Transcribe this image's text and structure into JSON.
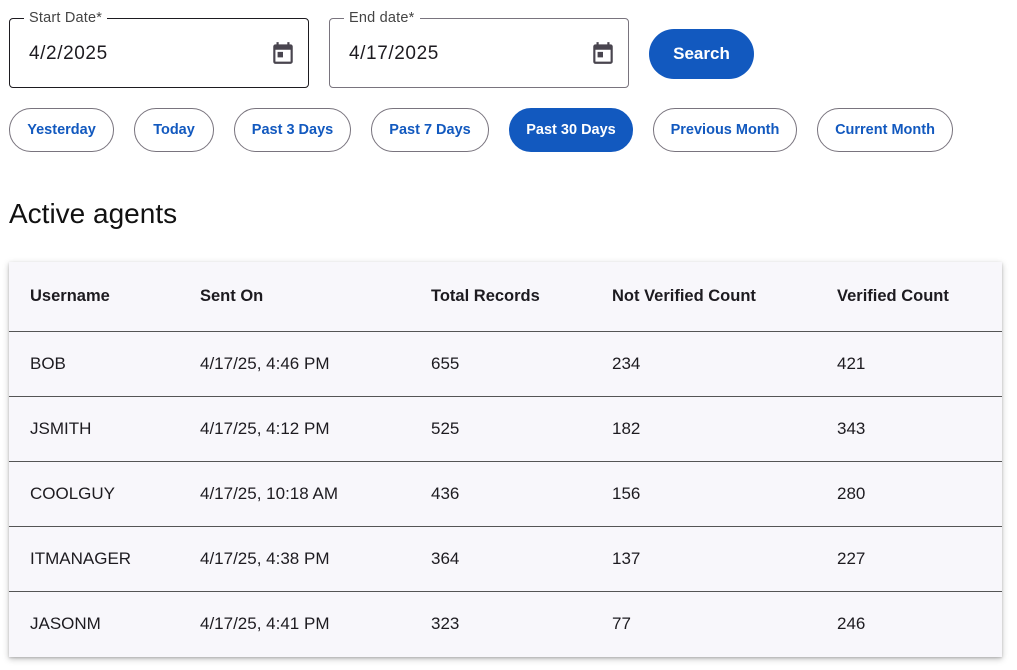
{
  "start_date": {
    "label": "Start Date*",
    "value": "4/2/2025",
    "icon": "calendar-icon"
  },
  "end_date": {
    "label": "End date*",
    "value": "4/17/2025",
    "icon": "calendar-icon"
  },
  "search_label": "Search",
  "accent_color": "#1259bf",
  "chips": [
    {
      "label": "Yesterday",
      "active": false
    },
    {
      "label": "Today",
      "active": false
    },
    {
      "label": "Past 3 Days",
      "active": false
    },
    {
      "label": "Past 7 Days",
      "active": false
    },
    {
      "label": "Past 30 Days",
      "active": true
    },
    {
      "label": "Previous Month",
      "active": false
    },
    {
      "label": "Current Month",
      "active": false
    }
  ],
  "section_title": "Active agents",
  "table": {
    "headers": [
      "Username",
      "Sent On",
      "Total Records",
      "Not Verified Count",
      "Verified Count"
    ],
    "rows": [
      [
        "BOB",
        "4/17/25, 4:46 PM",
        "655",
        "234",
        "421"
      ],
      [
        "JSMITH",
        "4/17/25, 4:12 PM",
        "525",
        "182",
        "343"
      ],
      [
        "COOLGUY",
        "4/17/25, 10:18 AM",
        "436",
        "156",
        "280"
      ],
      [
        "ITMANAGER",
        "4/17/25, 4:38 PM",
        "364",
        "137",
        "227"
      ],
      [
        "JASONM",
        "4/17/25, 4:41 PM",
        "323",
        "77",
        "246"
      ]
    ]
  }
}
